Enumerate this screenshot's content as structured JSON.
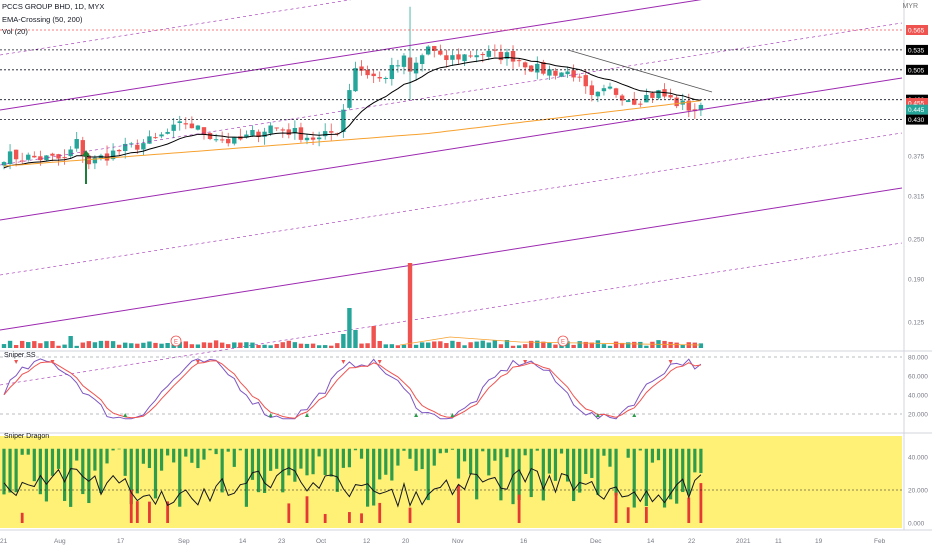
{
  "legend": {
    "symbol": "PCCS GROUP BHD, 1D, MYX",
    "ema": "EMA-Crossing (50, 200)",
    "vol": "Vol (20)"
  },
  "currency": "MYR",
  "panes": {
    "osc1_title": "Sniper SS",
    "osc2_title": "Sniper Dragon"
  },
  "colors": {
    "up": "#26a69a",
    "down": "#ef5350",
    "ema50": "#000000",
    "ema200": "#f7a12f",
    "channel": "#9c27b0",
    "osc_fill": "#fff176",
    "osc_up": "#2e9c4b",
    "osc_down": "#e53935"
  },
  "chart_data": [
    {
      "type": "candlestick",
      "name": "price",
      "y_ticks": [
        0.125,
        0.19,
        0.25,
        0.315,
        0.375,
        0.43,
        0.445,
        0.455,
        0.46,
        0.505,
        0.535,
        0.565
      ],
      "price_labels": [
        {
          "value": 0.565,
          "text": "0.565",
          "color": "#ef5350"
        },
        {
          "value": 0.535,
          "text": "0.535",
          "color": "#000000"
        },
        {
          "value": 0.505,
          "text": "0.505",
          "color": "#000000"
        },
        {
          "value": 0.46,
          "text": "0.460",
          "color": "#000000"
        },
        {
          "value": 0.455,
          "text": "0.455",
          "color": "#ef5350"
        },
        {
          "value": 0.445,
          "text": "0.445",
          "color": "#26a69a"
        },
        {
          "value": 0.43,
          "text": "0.430",
          "color": "#000000"
        }
      ],
      "horizontal_levels": [
        0.565,
        0.535,
        0.505,
        0.46,
        0.43
      ],
      "x_labels": [
        "21",
        "Aug",
        "17",
        "Sep",
        "14",
        "23",
        "Oct",
        "12",
        "20",
        "Nov",
        "16",
        "Dec",
        "14",
        "22",
        "2021",
        "11",
        "19",
        "Feb"
      ],
      "markers": [
        "E",
        "E"
      ]
    },
    {
      "type": "line",
      "name": "Sniper SS",
      "y_ticks": [
        "80.000",
        "60.000",
        "40.000",
        "20.000"
      ],
      "ylim": [
        0,
        85
      ]
    },
    {
      "type": "bar",
      "name": "Sniper Dragon",
      "y_ticks": [
        "40.000",
        "20.000",
        "0.000"
      ],
      "ylim": [
        0,
        50
      ]
    }
  ]
}
